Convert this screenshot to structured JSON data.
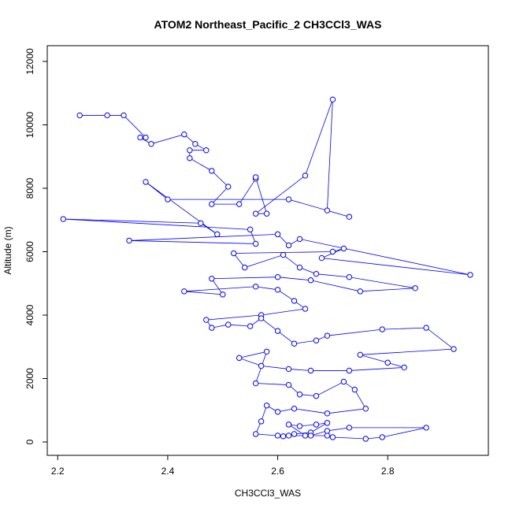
{
  "chart_data": {
    "type": "scatter-line",
    "title": "ATOM2 Northeast_Pacific_2 CH3CCl3_WAS",
    "x_label": "CH3CCl3_WAS",
    "y_label": "Altitude (m)",
    "color": "#0000ff",
    "x": [
      2.24,
      2.29,
      2.32,
      2.36,
      2.35,
      2.37,
      2.43,
      2.45,
      2.47,
      2.44,
      2.44,
      2.48,
      2.51,
      2.48,
      2.53,
      2.56,
      2.56,
      2.58,
      2.56,
      2.65,
      2.7,
      2.69,
      2.73,
      2.62,
      2.4,
      2.36,
      2.49,
      2.46,
      2.21,
      2.55,
      2.56,
      2.33,
      2.6,
      2.62,
      2.64,
      2.95,
      2.68,
      2.72,
      2.7,
      2.52,
      2.54,
      2.61,
      2.64,
      2.67,
      2.73,
      2.85,
      2.75,
      2.66,
      2.6,
      2.48,
      2.5,
      2.43,
      2.56,
      2.6,
      2.63,
      2.65,
      2.57,
      2.47,
      2.48,
      2.51,
      2.55,
      2.57,
      2.6,
      2.63,
      2.67,
      2.69,
      2.79,
      2.87,
      2.92,
      2.75,
      2.8,
      2.83,
      2.73,
      2.66,
      2.62,
      2.57,
      2.53,
      2.58,
      2.56,
      2.62,
      2.64,
      2.67,
      2.72,
      2.74,
      2.76,
      2.69,
      2.63,
      2.6,
      2.58,
      2.57,
      2.56,
      2.6,
      2.63,
      2.66,
      2.69,
      2.67,
      2.64,
      2.62,
      2.65,
      2.69,
      2.7,
      2.76,
      2.79,
      2.87,
      2.73,
      2.69,
      2.66,
      2.62,
      2.61
    ],
    "y": [
      10300,
      10300,
      10300,
      9600,
      9600,
      9400,
      9700,
      9400,
      9200,
      9200,
      8950,
      8550,
      8050,
      7500,
      7500,
      8300,
      8350,
      7200,
      7200,
      8400,
      10800,
      7300,
      7100,
      7650,
      7650,
      8200,
      6550,
      6900,
      7030,
      6700,
      6250,
      6350,
      6550,
      6200,
      6400,
      5270,
      5800,
      6100,
      6000,
      5950,
      5500,
      5900,
      5500,
      5300,
      5200,
      4850,
      4750,
      5100,
      5200,
      5150,
      4650,
      4750,
      4900,
      4800,
      4450,
      4200,
      4000,
      3850,
      3600,
      3700,
      3650,
      3900,
      3500,
      3100,
      3200,
      3350,
      3550,
      3600,
      2930,
      2750,
      2500,
      2350,
      2250,
      2250,
      2300,
      2400,
      2650,
      2850,
      1850,
      1800,
      1500,
      1450,
      1900,
      1650,
      1050,
      900,
      1050,
      950,
      1150,
      650,
      250,
      200,
      250,
      300,
      600,
      550,
      500,
      550,
      200,
      200,
      150,
      100,
      150,
      450,
      450,
      350,
      200,
      200,
      180
    ],
    "xlim": [
      2.181,
      2.983
    ],
    "ylim": [
      -422,
      12497
    ],
    "xticks": [
      2.2,
      2.4,
      2.6,
      2.8
    ],
    "yticks": [
      0,
      2000,
      4000,
      6000,
      8000,
      10000,
      12000
    ]
  }
}
